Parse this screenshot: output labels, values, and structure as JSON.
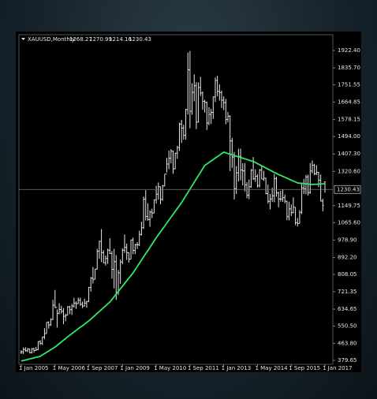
{
  "chart_data": {
    "type": "ohlc",
    "title": "XAUUSD,Monthly",
    "color": "#e8e8e8",
    "grid": false,
    "categories": [
      "1 Jan 2005",
      null,
      null,
      null,
      null,
      null,
      null,
      null,
      null,
      null,
      null,
      null,
      null,
      null,
      null,
      null,
      "1 May 2006",
      null,
      null,
      null,
      null,
      null,
      null,
      null,
      null,
      null,
      null,
      null,
      null,
      null,
      null,
      null,
      "1 Sep 2007",
      null,
      null,
      null,
      null,
      null,
      null,
      null,
      null,
      null,
      null,
      null,
      null,
      null,
      null,
      null,
      "1 Jan 2009",
      null,
      null,
      null,
      null,
      null,
      null,
      null,
      null,
      null,
      null,
      null,
      null,
      null,
      null,
      null,
      "1 May 2010",
      null,
      null,
      null,
      null,
      null,
      null,
      null,
      null,
      null,
      null,
      null,
      null,
      null,
      null,
      null,
      "1 Sep 2011",
      null,
      null,
      null,
      null,
      null,
      null,
      null,
      null,
      null,
      null,
      null,
      null,
      null,
      null,
      null,
      "1 Jan 2013",
      null,
      null,
      null,
      null,
      null,
      null,
      null,
      null,
      null,
      null,
      null,
      null,
      null,
      null,
      null,
      "1 May 2014",
      null,
      null,
      null,
      null,
      null,
      null,
      null,
      null,
      null,
      null,
      null,
      null,
      null,
      null,
      null,
      "1 Sep 2015",
      null,
      null,
      null,
      null,
      null,
      null,
      null,
      null,
      null,
      null,
      null,
      null,
      null,
      null,
      null,
      "1 Jan 2017"
    ],
    "open": [
      420,
      422,
      434,
      428,
      436,
      418,
      437,
      429,
      433,
      473,
      465,
      496,
      513,
      569,
      556,
      583,
      654,
      643,
      614,
      633,
      624,
      599,
      604,
      646,
      632,
      650,
      665,
      662,
      679,
      659,
      650,
      665,
      673,
      743,
      789,
      783,
      834,
      923,
      972,
      916,
      865,
      887,
      928,
      912,
      833,
      871,
      718,
      815,
      869,
      928,
      942,
      916,
      883,
      979,
      927,
      955,
      955,
      1007,
      1040,
      1182,
      1096,
      1081,
      1118,
      1113,
      1179,
      1207,
      1244,
      1181,
      1248,
      1307,
      1357,
      1386,
      1421,
      1333,
      1411,
      1439,
      1556,
      1536,
      1500,
      1628,
      1826,
      1620,
      1714,
      1747,
      1566,
      1738,
      1711,
      1669,
      1664,
      1561,
      1604,
      1614,
      1692,
      1773,
      1719,
      1713,
      1675,
      1663,
      1579,
      1595,
      1472,
      1392,
      1234,
      1313,
      1395,
      1327,
      1323,
      1253,
      1202,
      1244,
      1326,
      1284,
      1296,
      1250,
      1327,
      1282,
      1287,
      1210,
      1172,
      1183,
      1199,
      1284,
      1213,
      1183,
      1183,
      1190,
      1172,
      1095,
      1134,
      1115,
      1142,
      1065,
      1061,
      1117,
      1238,
      1233,
      1293,
      1215,
      1322,
      1351,
      1309,
      1316,
      1277,
      1173,
      1268.27
    ],
    "high": [
      430,
      444,
      445,
      441,
      438,
      441,
      442,
      447,
      475,
      480,
      497,
      540,
      570,
      574,
      589,
      681,
      730,
      633,
      664,
      652,
      640,
      612,
      650,
      651,
      661,
      691,
      673,
      692,
      692,
      672,
      687,
      676,
      746,
      795,
      845,
      835,
      935,
      975,
      1033,
      928,
      902,
      936,
      988,
      924,
      935,
      904,
      830,
      882,
      937,
      1006,
      961,
      917,
      981,
      991,
      960,
      968,
      1025,
      1070,
      1195,
      1227,
      1162,
      1127,
      1135,
      1180,
      1249,
      1265,
      1245,
      1253,
      1307,
      1388,
      1424,
      1431,
      1424,
      1413,
      1448,
      1563,
      1577,
      1553,
      1632,
      1912,
      1920,
      1759,
      1803,
      1764,
      1763,
      1791,
      1718,
      1677,
      1668,
      1640,
      1631,
      1692,
      1788,
      1796,
      1754,
      1723,
      1694,
      1681,
      1617,
      1600,
      1487,
      1417,
      1347,
      1433,
      1434,
      1361,
      1362,
      1267,
      1280,
      1332,
      1392,
      1331,
      1306,
      1332,
      1345,
      1323,
      1288,
      1255,
      1208,
      1239,
      1307,
      1294,
      1219,
      1224,
      1232,
      1205,
      1174,
      1170,
      1156,
      1191,
      1142,
      1088,
      1128,
      1263,
      1283,
      1303,
      1304,
      1362,
      1375,
      1358,
      1352,
      1318,
      1305,
      1184,
      1270.99
    ],
    "low": [
      411,
      411,
      422,
      420,
      414,
      414,
      418,
      427,
      431,
      456,
      456,
      485,
      512,
      538,
      551,
      581,
      640,
      543,
      609,
      612,
      560,
      574,
      605,
      610,
      606,
      642,
      636,
      660,
      651,
      640,
      648,
      642,
      670,
      722,
      762,
      783,
      832,
      885,
      869,
      865,
      852,
      860,
      909,
      786,
      738,
      681,
      705,
      760,
      858,
      915,
      880,
      866,
      883,
      908,
      909,
      934,
      949,
      1001,
      1034,
      1076,
      1075,
      1045,
      1088,
      1112,
      1160,
      1180,
      1157,
      1174,
      1246,
      1315,
      1331,
      1360,
      1308,
      1331,
      1383,
      1422,
      1462,
      1478,
      1479,
      1604,
      1535,
      1602,
      1669,
      1531,
      1564,
      1696,
      1627,
      1613,
      1527,
      1550,
      1556,
      1582,
      1666,
      1694,
      1673,
      1636,
      1626,
      1555,
      1564,
      1322,
      1338,
      1180,
      1208,
      1270,
      1276,
      1251,
      1221,
      1186,
      1182,
      1238,
      1277,
      1268,
      1240,
      1240,
      1281,
      1273,
      1206,
      1161,
      1131,
      1168,
      1167,
      1195,
      1142,
      1170,
      1169,
      1162,
      1077,
      1077,
      1098,
      1112,
      1053,
      1046,
      1062,
      1108,
      1208,
      1207,
      1200,
      1209,
      1311,
      1301,
      1302,
      1242,
      1171,
      1122,
      1214.16
    ],
    "close": [
      422,
      434,
      428,
      436,
      418,
      437,
      429,
      433,
      473,
      465,
      496,
      513,
      569,
      556,
      583,
      654,
      643,
      614,
      633,
      624,
      599,
      604,
      646,
      632,
      650,
      665,
      662,
      679,
      659,
      650,
      665,
      673,
      743,
      789,
      783,
      834,
      923,
      972,
      916,
      865,
      887,
      928,
      912,
      833,
      871,
      718,
      815,
      869,
      928,
      942,
      916,
      883,
      979,
      927,
      955,
      955,
      1007,
      1040,
      1182,
      1096,
      1081,
      1118,
      1113,
      1179,
      1207,
      1244,
      1181,
      1248,
      1307,
      1357,
      1386,
      1421,
      1333,
      1411,
      1439,
      1556,
      1536,
      1500,
      1628,
      1826,
      1620,
      1714,
      1747,
      1566,
      1738,
      1711,
      1669,
      1664,
      1561,
      1604,
      1614,
      1692,
      1773,
      1719,
      1713,
      1675,
      1663,
      1579,
      1595,
      1472,
      1392,
      1234,
      1313,
      1395,
      1327,
      1323,
      1253,
      1202,
      1244,
      1326,
      1284,
      1296,
      1250,
      1327,
      1282,
      1287,
      1210,
      1172,
      1183,
      1199,
      1284,
      1213,
      1183,
      1183,
      1190,
      1172,
      1095,
      1134,
      1115,
      1142,
      1065,
      1061,
      1117,
      1238,
      1233,
      1293,
      1215,
      1322,
      1351,
      1309,
      1316,
      1277,
      1173,
      1151,
      1230.43
    ],
    "ma": {
      "color": "#2ee86a",
      "values": [
        376,
        379,
        381,
        384,
        387,
        389,
        392,
        395,
        397,
        400,
        407,
        413,
        420,
        426,
        433,
        439,
        446,
        454,
        463,
        471,
        480,
        488,
        497,
        505,
        513,
        521,
        529,
        537,
        545,
        552,
        560,
        568,
        576,
        585,
        595,
        604,
        614,
        623,
        632,
        642,
        651,
        661,
        670,
        683,
        696,
        710,
        723,
        736,
        749,
        762,
        776,
        789,
        802,
        815,
        831,
        847,
        863,
        879,
        895,
        911,
        926,
        942,
        958,
        974,
        990,
        1005,
        1019,
        1034,
        1048,
        1063,
        1078,
        1092,
        1107,
        1121,
        1136,
        1150,
        1165,
        1182,
        1199,
        1215,
        1232,
        1249,
        1266,
        1283,
        1300,
        1316,
        1333,
        1350,
        1357,
        1365,
        1372,
        1379,
        1387,
        1394,
        1401,
        1409,
        1416,
        1413,
        1409,
        1406,
        1403,
        1400,
        1396,
        1393,
        1390,
        1386,
        1383,
        1380,
        1376,
        1373,
        1370,
        1365,
        1359,
        1354,
        1348,
        1343,
        1337,
        1332,
        1326,
        1321,
        1315,
        1310,
        1305,
        1301,
        1296,
        1291,
        1287,
        1282,
        1277,
        1272,
        1268,
        1263,
        1262,
        1261,
        1260,
        1259,
        1257,
        1256,
        1255,
        1256,
        1256,
        1257,
        1258,
        1258,
        1259
      ]
    },
    "ylim": [
      360,
      1997
    ],
    "yticks": [
      {
        "value": 1922.4,
        "label": "1922.40"
      },
      {
        "value": 1835.7,
        "label": "1835.70"
      },
      1751.55,
      1664.85,
      1578.15,
      {
        "value": 1494,
        "label": "1494.00"
      },
      {
        "value": 1407.3,
        "label": "1407.30"
      },
      {
        "value": 1320.6,
        "label": "1320.60"
      },
      1149.75,
      {
        "value": 1065.6,
        "label": "1065.60"
      },
      {
        "value": 978.9,
        "label": "978.90"
      },
      {
        "value": 892.2,
        "label": "892.20"
      },
      808.05,
      721.35,
      634.65,
      {
        "value": 550.5,
        "label": "550.50"
      },
      {
        "value": 463.8,
        "label": "463.80"
      },
      379.65
    ]
  }
}
